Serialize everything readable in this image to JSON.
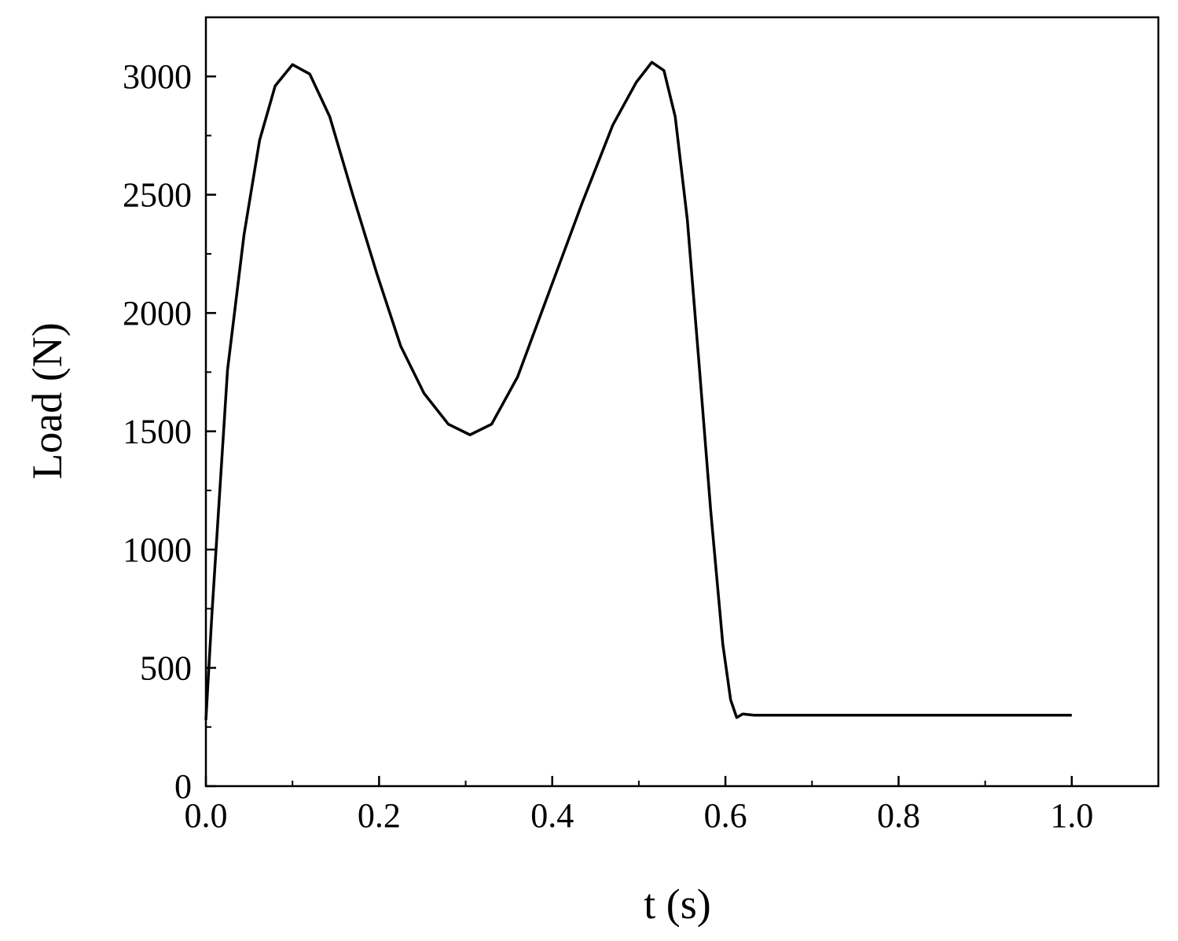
{
  "chart_data": {
    "type": "line",
    "xlabel": "t (s)",
    "ylabel": "Load (N)",
    "x": [
      0.0,
      0.007,
      0.025,
      0.044,
      0.062,
      0.08,
      0.1,
      0.12,
      0.143,
      0.17,
      0.198,
      0.225,
      0.252,
      0.28,
      0.305,
      0.33,
      0.36,
      0.397,
      0.434,
      0.47,
      0.497,
      0.515,
      0.529,
      0.542,
      0.556,
      0.57,
      0.583,
      0.597,
      0.606,
      0.613,
      0.62,
      0.633,
      1.0
    ],
    "series": [
      {
        "name": "Load",
        "color": "#000000",
        "values": [
          280,
          730,
          1760,
          2330,
          2730,
          2960,
          3050,
          3010,
          2830,
          2495,
          2160,
          1860,
          1660,
          1530,
          1485,
          1530,
          1730,
          2095,
          2460,
          2795,
          2975,
          3060,
          3025,
          2830,
          2395,
          1765,
          1165,
          600,
          365,
          290,
          305,
          300,
          300
        ]
      }
    ],
    "xlim": [
      0,
      1.1
    ],
    "ylim": [
      0,
      3250
    ],
    "xticks": [
      {
        "value": 0,
        "label": "0.0"
      },
      0.2,
      0.4,
      0.6,
      0.8,
      {
        "value": 1,
        "label": "1.0"
      }
    ],
    "xminorticks": [
      0.1,
      0.3,
      0.5,
      0.7,
      0.9
    ],
    "yticks": [
      0,
      500,
      1000,
      1500,
      2000,
      2500,
      3000
    ],
    "yminorticks": [
      250,
      750,
      1250,
      1750,
      2250,
      2750,
      3250
    ],
    "grid": false
  }
}
